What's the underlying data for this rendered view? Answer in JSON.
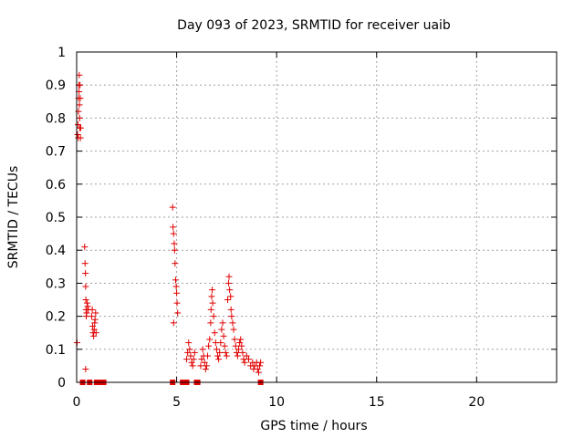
{
  "chart_data": {
    "type": "scatter",
    "title": "Day 093 of 2023, SRMTID for receiver uaib",
    "xlabel": "GPS time / hours",
    "ylabel": "SRMTID / TECUs",
    "xlim": [
      0,
      24
    ],
    "ylim": [
      0,
      1
    ],
    "x_ticks": [
      "0",
      "5",
      "10",
      "15",
      "20"
    ],
    "y_ticks": [
      "0",
      "0.1",
      "0.2",
      "0.3",
      "0.4",
      "0.5",
      "0.6",
      "0.7",
      "0.8",
      "0.9",
      "1"
    ],
    "grid": true,
    "marker_color": "#e00000",
    "series": [
      {
        "marker": "plus",
        "points": [
          [
            0.02,
            0.12
          ],
          [
            0.05,
            0.75
          ],
          [
            0.07,
            0.78
          ],
          [
            0.08,
            0.74
          ],
          [
            0.09,
            0.82
          ],
          [
            0.1,
            0.86
          ],
          [
            0.11,
            0.9
          ],
          [
            0.12,
            0.88
          ],
          [
            0.13,
            0.93
          ],
          [
            0.14,
            0.84
          ],
          [
            0.15,
            0.8
          ],
          [
            0.16,
            0.77
          ],
          [
            0.17,
            0.9
          ],
          [
            0.18,
            0.86
          ],
          [
            0.19,
            0.74
          ],
          [
            0.2,
            0.77
          ],
          [
            0.4,
            0.41
          ],
          [
            0.42,
            0.36
          ],
          [
            0.44,
            0.33
          ],
          [
            0.45,
            0.29
          ],
          [
            0.46,
            0.25
          ],
          [
            0.47,
            0.22
          ],
          [
            0.48,
            0.2
          ],
          [
            0.5,
            0.21
          ],
          [
            0.52,
            0.24
          ],
          [
            0.55,
            0.23
          ],
          [
            0.58,
            0.22
          ],
          [
            0.45,
            0.04
          ],
          [
            0.75,
            0.2
          ],
          [
            0.78,
            0.22
          ],
          [
            0.8,
            0.17
          ],
          [
            0.82,
            0.15
          ],
          [
            0.85,
            0.14
          ],
          [
            0.88,
            0.16
          ],
          [
            0.9,
            0.18
          ],
          [
            0.92,
            0.19
          ],
          [
            0.95,
            0.21
          ],
          [
            0.97,
            0.15
          ],
          [
            4.8,
            0.53
          ],
          [
            4.82,
            0.47
          ],
          [
            4.85,
            0.45
          ],
          [
            4.88,
            0.42
          ],
          [
            4.9,
            0.4
          ],
          [
            4.92,
            0.36
          ],
          [
            4.95,
            0.31
          ],
          [
            4.98,
            0.29
          ],
          [
            5.0,
            0.27
          ],
          [
            5.02,
            0.24
          ],
          [
            5.05,
            0.21
          ],
          [
            4.85,
            0.18
          ],
          [
            5.5,
            0.07
          ],
          [
            5.55,
            0.09
          ],
          [
            5.6,
            0.12
          ],
          [
            5.65,
            0.1
          ],
          [
            5.7,
            0.08
          ],
          [
            5.75,
            0.06
          ],
          [
            5.8,
            0.05
          ],
          [
            5.85,
            0.07
          ],
          [
            5.9,
            0.09
          ],
          [
            6.2,
            0.05
          ],
          [
            6.25,
            0.07
          ],
          [
            6.3,
            0.1
          ],
          [
            6.35,
            0.08
          ],
          [
            6.4,
            0.06
          ],
          [
            6.45,
            0.04
          ],
          [
            6.5,
            0.05
          ],
          [
            6.55,
            0.08
          ],
          [
            6.6,
            0.11
          ],
          [
            6.65,
            0.13
          ],
          [
            6.7,
            0.18
          ],
          [
            6.72,
            0.22
          ],
          [
            6.75,
            0.26
          ],
          [
            6.78,
            0.28
          ],
          [
            6.8,
            0.24
          ],
          [
            6.85,
            0.2
          ],
          [
            6.9,
            0.15
          ],
          [
            6.95,
            0.12
          ],
          [
            7.0,
            0.1
          ],
          [
            7.05,
            0.08
          ],
          [
            7.1,
            0.07
          ],
          [
            7.15,
            0.09
          ],
          [
            7.2,
            0.12
          ],
          [
            7.25,
            0.16
          ],
          [
            7.3,
            0.18
          ],
          [
            7.35,
            0.14
          ],
          [
            7.4,
            0.11
          ],
          [
            7.45,
            0.09
          ],
          [
            7.5,
            0.08
          ],
          [
            7.55,
            0.25
          ],
          [
            7.6,
            0.3
          ],
          [
            7.62,
            0.32
          ],
          [
            7.65,
            0.28
          ],
          [
            7.7,
            0.26
          ],
          [
            7.72,
            0.22
          ],
          [
            7.75,
            0.2
          ],
          [
            7.8,
            0.18
          ],
          [
            7.85,
            0.16
          ],
          [
            7.9,
            0.13
          ],
          [
            7.95,
            0.11
          ],
          [
            8.0,
            0.09
          ],
          [
            8.05,
            0.08
          ],
          [
            8.1,
            0.1
          ],
          [
            8.15,
            0.12
          ],
          [
            8.2,
            0.13
          ],
          [
            8.25,
            0.11
          ],
          [
            8.3,
            0.09
          ],
          [
            8.35,
            0.07
          ],
          [
            8.4,
            0.06
          ],
          [
            8.5,
            0.08
          ],
          [
            8.6,
            0.07
          ],
          [
            8.7,
            0.05
          ],
          [
            8.8,
            0.06
          ],
          [
            8.85,
            0.04
          ],
          [
            8.9,
            0.05
          ],
          [
            9.0,
            0.06
          ],
          [
            9.05,
            0.04
          ],
          [
            9.1,
            0.03
          ],
          [
            9.15,
            0.05
          ],
          [
            9.2,
            0.06
          ]
        ]
      },
      {
        "marker": "square",
        "points": [
          [
            0.3,
            0
          ],
          [
            0.65,
            0
          ],
          [
            1.0,
            0
          ],
          [
            1.2,
            0
          ],
          [
            1.35,
            0
          ],
          [
            4.8,
            0
          ],
          [
            5.3,
            0
          ],
          [
            5.5,
            0
          ],
          [
            6.0,
            0
          ],
          [
            6.05,
            0
          ],
          [
            9.2,
            0
          ]
        ]
      }
    ]
  }
}
